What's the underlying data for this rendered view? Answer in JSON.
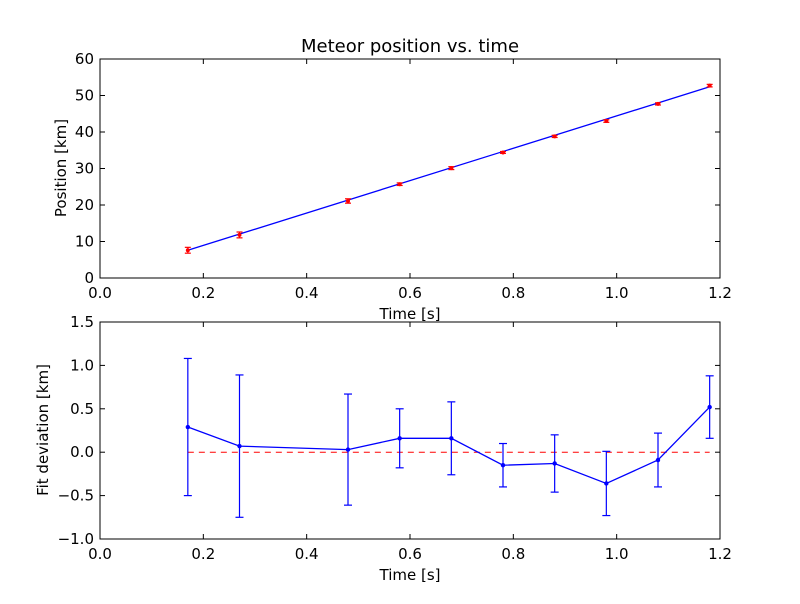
{
  "chart_data": [
    {
      "type": "line",
      "title": "Meteor position vs. time",
      "xlabel": "Time [s]",
      "ylabel": "Position [km]",
      "xlim": [
        0.0,
        1.2
      ],
      "ylim": [
        0,
        60
      ],
      "xticks": [
        "0.0",
        "0.2",
        "0.4",
        "0.6",
        "0.8",
        "1.0",
        "1.2"
      ],
      "yticks": [
        "0",
        "10",
        "20",
        "30",
        "40",
        "50",
        "60"
      ],
      "grid": false,
      "series": [
        {
          "role": "fit-line",
          "color": "#0000ff",
          "x": [
            0.17,
            1.18
          ],
          "y": [
            7.6,
            52.4
          ]
        },
        {
          "role": "measurements",
          "color": "#ff0000",
          "x": [
            0.17,
            0.27,
            0.48,
            0.58,
            0.68,
            0.78,
            0.88,
            0.98,
            1.08,
            1.18
          ],
          "y": [
            7.6,
            11.8,
            21.1,
            25.7,
            30.1,
            34.4,
            38.8,
            43.0,
            47.7,
            52.7
          ],
          "yerr": [
            0.8,
            0.8,
            0.6,
            0.35,
            0.4,
            0.25,
            0.3,
            0.35,
            0.3,
            0.35
          ]
        }
      ]
    },
    {
      "type": "line",
      "title": "",
      "xlabel": "Time [s]",
      "ylabel": "Fit deviation [km]",
      "xlim": [
        0.0,
        1.2
      ],
      "ylim": [
        -1.0,
        1.5
      ],
      "xticks": [
        "0.0",
        "0.2",
        "0.4",
        "0.6",
        "0.8",
        "1.0",
        "1.2"
      ],
      "yticks": [
        "−1.0",
        "−0.5",
        "0.0",
        "0.5",
        "1.0",
        "1.5"
      ],
      "grid": false,
      "zero_line_color": "#ff0000",
      "series": [
        {
          "role": "residuals",
          "color": "#0000ff",
          "x": [
            0.17,
            0.27,
            0.48,
            0.58,
            0.68,
            0.78,
            0.88,
            0.98,
            1.08,
            1.18
          ],
          "y": [
            0.29,
            0.07,
            0.03,
            0.16,
            0.16,
            -0.15,
            -0.13,
            -0.36,
            -0.09,
            0.52
          ],
          "yerr": [
            0.79,
            0.82,
            0.64,
            0.34,
            0.42,
            0.25,
            0.33,
            0.37,
            0.31,
            0.36
          ]
        }
      ]
    }
  ]
}
